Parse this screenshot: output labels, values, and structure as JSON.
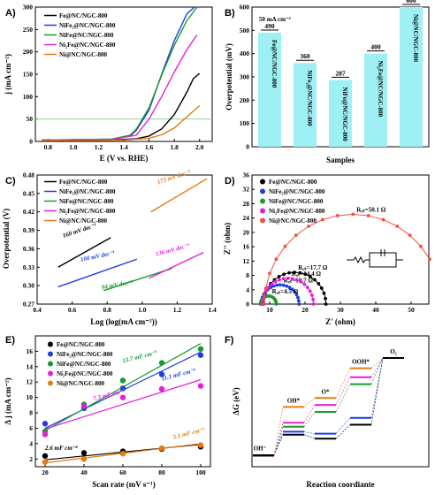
{
  "colors": {
    "Fe": "#000000",
    "NiFe2": "#1f3ce0",
    "NiFe": "#1a9a2e",
    "Ni2Fe": "#e51fd6",
    "Ni": "#e57a10",
    "nyquist_Ni": "#f0503c",
    "bar": "#9ff0f5",
    "barText": "#d3181b",
    "threshold": "#7fd07f"
  },
  "legend_full": [
    "Fe@NC/NGC-800",
    "NiFe₂@NC/NGC-800",
    "NiFe@NC/NGC-800",
    "Ni₂Fe@NC/NGC-800",
    "Ni@NC/NGC-800"
  ],
  "chart_data": [
    {
      "panel": "A)",
      "type": "line",
      "xlabel": "E (V vs. RHE)",
      "ylabel": "j (mA cm⁻²)",
      "xlim": [
        0.7,
        2.1
      ],
      "ylim": [
        0,
        300
      ],
      "xticks": [
        "0.8",
        "1.0",
        "1.2",
        "1.4",
        "1.6",
        "1.8",
        "2.0"
      ],
      "yticks": [
        "0",
        "50",
        "100",
        "150",
        "200",
        "250",
        "300"
      ],
      "threshold": 50,
      "series": [
        {
          "name": "Fe@NC/NGC-800",
          "key": "Fe",
          "x": [
            0.75,
            1.3,
            1.5,
            1.6,
            1.7,
            1.8,
            1.9,
            1.95,
            2.0
          ],
          "y": [
            2,
            3,
            6,
            12,
            28,
            60,
            110,
            140,
            152
          ]
        },
        {
          "name": "NiFe₂@NC/NGC-800",
          "key": "NiFe2",
          "x": [
            0.75,
            1.3,
            1.45,
            1.5,
            1.6,
            1.7,
            1.8,
            1.9,
            1.96
          ],
          "y": [
            3,
            5,
            12,
            25,
            70,
            150,
            225,
            285,
            300
          ]
        },
        {
          "name": "NiFe@NC/NGC-800",
          "key": "NiFe",
          "x": [
            0.75,
            1.3,
            1.45,
            1.5,
            1.6,
            1.7,
            1.8,
            1.9,
            1.98
          ],
          "y": [
            3,
            5,
            14,
            28,
            75,
            148,
            215,
            270,
            300
          ]
        },
        {
          "name": "Ni₂Fe@NC/NGC-800",
          "key": "Ni2Fe",
          "x": [
            0.75,
            1.3,
            1.5,
            1.6,
            1.7,
            1.8,
            1.9,
            1.98
          ],
          "y": [
            3,
            4,
            14,
            50,
            100,
            155,
            205,
            238
          ]
        },
        {
          "name": "Ni@NC/NGC-800",
          "key": "Ni",
          "x": [
            0.75,
            1.4,
            1.6,
            1.7,
            1.8,
            1.9,
            2.0
          ],
          "y": [
            2,
            3,
            7,
            15,
            30,
            55,
            80
          ]
        }
      ]
    },
    {
      "panel": "B)",
      "type": "bar",
      "note": "50 mA cm⁻²",
      "xlabel": "Samples",
      "ylabel": "Overpotential (mV)",
      "ylim": [
        0,
        600
      ],
      "yticks": [
        "0",
        "100",
        "200",
        "300",
        "400",
        "500",
        "600"
      ],
      "categories": [
        "Fe@NC/NGC-800",
        "NiFe₂@NC/NGC-800",
        "NiFe@NC/NGC-800",
        "Ni₂Fe@NC/NGC-800",
        "Ni@NC/NGC-800"
      ],
      "values": [
        490,
        360,
        287,
        400,
        600
      ],
      "labels": [
        "490",
        "360",
        "287",
        "400",
        "600"
      ]
    },
    {
      "panel": "C)",
      "type": "line",
      "xlabel": "Log (log(mA cm⁻²))",
      "ylabel": "Overpotential (V)",
      "xlim": [
        0.4,
        1.4
      ],
      "ylim": [
        0.27,
        0.48
      ],
      "xticks": [
        "0.4",
        "0.6",
        "0.8",
        "1.0",
        "1.2",
        "1.4"
      ],
      "yticks": [
        "0.27",
        "0.30",
        "0.33",
        "0.36",
        "0.39",
        "0.42",
        "0.45",
        "0.48"
      ],
      "series": [
        {
          "name": "Fe@NC/NGC-800",
          "key": "Fe",
          "x": [
            0.52,
            0.82
          ],
          "y": [
            0.33,
            0.378
          ],
          "label": "160 mV dec⁻¹",
          "lx": 0.55,
          "ly": 0.378,
          "rot": -18
        },
        {
          "name": "NiFe₂@NC/NGC-800",
          "key": "NiFe2",
          "x": [
            0.52,
            0.97
          ],
          "y": [
            0.298,
            0.343
          ],
          "label": "100 mV dec⁻¹",
          "lx": 0.65,
          "ly": 0.339,
          "rot": -12
        },
        {
          "name": "NiFe@NC/NGC-800",
          "key": "NiFe",
          "x": [
            0.78,
            1.17
          ],
          "y": [
            0.292,
            0.328
          ],
          "label": "94 mV dec⁻¹",
          "lx": 0.77,
          "ly": 0.294,
          "rot": -10
        },
        {
          "name": "Ni₂Fe@NC/NGC-800",
          "key": "Ni2Fe",
          "x": [
            1.04,
            1.35
          ],
          "y": [
            0.312,
            0.354
          ],
          "label": "136 mV dec⁻¹",
          "lx": 1.08,
          "ly": 0.348,
          "rot": -15
        },
        {
          "name": "Ni@NC/NGC-800",
          "key": "Ni",
          "x": [
            1.05,
            1.37
          ],
          "y": [
            0.42,
            0.474
          ],
          "label": "173 mV dec⁻¹",
          "lx": 1.09,
          "ly": 0.465,
          "rot": -18
        }
      ]
    },
    {
      "panel": "D)",
      "type": "scatter",
      "xlabel": "Z' (ohm)",
      "ylabel": "Z'' (ohm)",
      "xlim": [
        5,
        55
      ],
      "ylim": [
        0,
        36
      ],
      "xticks": [
        "10",
        "20",
        "30",
        "40",
        "50"
      ],
      "yticks": [
        "0",
        "4",
        "8",
        "12",
        "16",
        "20",
        "24",
        "28",
        "32",
        "36"
      ],
      "series": [
        {
          "name": "Fe@NC/NGC-800",
          "key": "Fe",
          "x0": 8.2,
          "R": 17.7,
          "label": "R꜀ₜ=17.7 Ω"
        },
        {
          "name": "NiFe₂@NC/NGC-800",
          "key": "NiFe2",
          "x0": 7.6,
          "R": 10.7,
          "label": "R꜀ₜ=10.7 Ω"
        },
        {
          "name": "NiFe@NC/NGC-800",
          "key": "NiFe",
          "x0": 7.4,
          "R": 4.5,
          "label": "R꜀ₜ=4.5 Ω"
        },
        {
          "name": "Ni₂Fe@NC/NGC-800",
          "key": "Ni2Fe",
          "x0": 8.0,
          "R": 14.4,
          "label": "R꜀ₜ=14.4 Ω"
        },
        {
          "name": "Ni@NC/NGC-800",
          "key": "nyquist_Ni",
          "x0": 8.5,
          "R": 50.1,
          "label": "R꜀ₜ=50.1 Ω"
        }
      ]
    },
    {
      "panel": "E)",
      "type": "scatter",
      "xlabel": "Scan rate (mV s⁻¹)",
      "ylabel": "Δ j (mA cm⁻²)",
      "xlim": [
        15,
        105
      ],
      "ylim": [
        1,
        18
      ],
      "xticks": [
        "20",
        "40",
        "60",
        "80",
        "100"
      ],
      "yticks": [
        "2",
        "4",
        "6",
        "8",
        "10",
        "12",
        "14",
        "16"
      ],
      "series": [
        {
          "name": "Fe@NC/NGC-800",
          "key": "Fe",
          "x": [
            20,
            40,
            60,
            80,
            100
          ],
          "y": [
            2.4,
            2.8,
            3.0,
            3.3,
            3.6
          ],
          "fit": [
            1.9,
            3.9
          ],
          "label": ""
        },
        {
          "name": "NiFe₂@NC/NGC-800",
          "key": "NiFe2",
          "x": [
            20,
            40,
            60,
            80,
            100
          ],
          "y": [
            6.6,
            8.6,
            11.2,
            13.0,
            15.5
          ],
          "fit": [
            6.0,
            15.9
          ],
          "label": "11.1 mF cm⁻²"
        },
        {
          "name": "NiFe@NC/NGC-800",
          "key": "NiFe",
          "x": [
            20,
            40,
            60,
            80,
            100
          ],
          "y": [
            5.6,
            9.1,
            12.2,
            14.5,
            16.3
          ],
          "fit": [
            5.7,
            17.0
          ],
          "label": "13.7 mF cm⁻²"
        },
        {
          "name": "Ni₂Fe@NC/NGC-800",
          "key": "Ni2Fe",
          "x": [
            20,
            40,
            60,
            80,
            100
          ],
          "y": [
            5.2,
            8.9,
            10.0,
            11.1,
            11.5
          ],
          "fit": [
            5.9,
            12.3
          ],
          "label": "7.3 mF cm⁻²"
        },
        {
          "name": "Ni@NC/NGC-800",
          "key": "Ni",
          "x": [
            20,
            40,
            60,
            80,
            100
          ],
          "y": [
            1.6,
            2.0,
            2.7,
            3.4,
            3.8
          ],
          "fit": [
            1.5,
            4.0
          ],
          "label": "3.1 mF cm⁻²"
        }
      ],
      "extra_label": "2.6 mF cm⁻²"
    },
    {
      "panel": "F)",
      "type": "line",
      "xlabel": "Reaction coordiante",
      "ylabel": "ΔG (eV)",
      "states": [
        "OH⁻",
        "OH*",
        "O*",
        "OOH*",
        "O₂"
      ],
      "series": [
        {
          "name": "Fe@NC/NGC-800",
          "key": "Fe",
          "y": [
            0,
            1.05,
            0.85,
            1.55,
            4.92
          ]
        },
        {
          "name": "NiFe₂@NC/NGC-800",
          "key": "NiFe2",
          "y": [
            0,
            1.2,
            1.1,
            1.9,
            4.92
          ]
        },
        {
          "name": "NiFe@NC/NGC-800",
          "key": "NiFe",
          "y": [
            0,
            1.45,
            2.2,
            3.6,
            4.92
          ]
        },
        {
          "name": "Ni₂Fe@NC/NGC-800",
          "key": "Ni2Fe",
          "y": [
            0,
            1.65,
            2.55,
            3.95,
            4.92
          ]
        },
        {
          "name": "Ni@NC/NGC-800",
          "key": "Ni",
          "y": [
            0,
            2.45,
            2.9,
            4.4,
            4.92
          ]
        }
      ]
    }
  ]
}
